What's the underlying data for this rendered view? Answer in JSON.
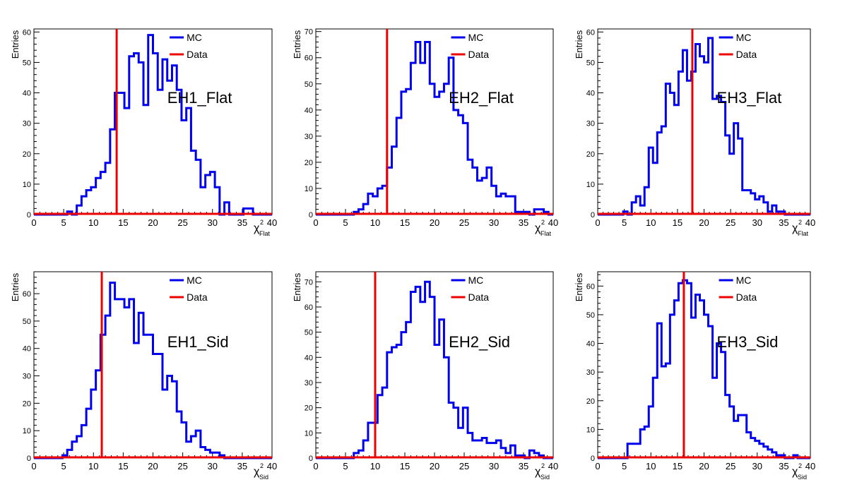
{
  "colors": {
    "mc": "#0000ee",
    "data": "#ee0000",
    "axis": "#000000"
  },
  "chart_data": [
    {
      "type": "line",
      "step": true,
      "title": "EH1_Flat",
      "ylabel": "Entries",
      "xlabel_main": "χ",
      "xlabel_sup": "2",
      "xlabel_sub": "Flat",
      "xlim": [
        0,
        40
      ],
      "ylim": [
        0,
        61
      ],
      "xticks": [
        0,
        5,
        10,
        15,
        20,
        25,
        30,
        35,
        40
      ],
      "yticks": [
        0,
        10,
        20,
        30,
        40,
        50,
        60
      ],
      "bin_width": 0.8,
      "legend": [
        {
          "name": "MC"
        },
        {
          "name": "Data"
        }
      ],
      "data_x": 13.9,
      "mc": [
        0,
        0,
        0,
        0,
        0,
        0,
        0,
        1,
        0,
        3,
        6,
        8,
        9,
        12,
        14,
        17,
        28,
        40,
        40,
        35,
        52,
        53,
        50,
        36,
        59,
        53,
        41,
        51,
        44,
        49,
        41,
        31,
        35,
        21,
        18,
        9,
        13,
        14,
        9,
        0,
        4,
        0,
        0,
        0,
        2,
        2,
        0,
        0,
        0,
        0
      ]
    },
    {
      "type": "line",
      "step": true,
      "title": "EH2_Flat",
      "ylabel": "Entries",
      "xlabel_main": "χ",
      "xlabel_sup": "2",
      "xlabel_sub": "Flat",
      "xlim": [
        0,
        40
      ],
      "ylim": [
        0,
        71
      ],
      "xticks": [
        0,
        5,
        10,
        15,
        20,
        25,
        30,
        35,
        40
      ],
      "yticks": [
        0,
        10,
        20,
        30,
        40,
        50,
        60,
        70
      ],
      "bin_width": 0.8,
      "legend": [
        {
          "name": "MC"
        },
        {
          "name": "Data"
        }
      ],
      "data_x": 12.0,
      "mc": [
        0,
        0,
        0,
        0,
        0,
        0,
        0,
        0,
        1,
        2,
        4,
        8,
        7,
        10,
        11,
        18,
        26,
        37,
        47,
        48,
        58,
        66,
        58,
        66,
        50,
        45,
        47,
        50,
        60,
        40,
        38,
        35,
        21,
        18,
        13,
        14,
        18,
        11,
        7,
        8,
        7,
        7,
        1,
        1,
        1,
        0,
        2,
        2,
        1,
        0
      ]
    },
    {
      "type": "line",
      "step": true,
      "title": "EH3_Flat",
      "ylabel": "Entries",
      "xlabel_main": "χ",
      "xlabel_sup": "2",
      "xlabel_sub": "Flat",
      "xlim": [
        0,
        40
      ],
      "ylim": [
        0,
        61
      ],
      "xticks": [
        0,
        5,
        10,
        15,
        20,
        25,
        30,
        35,
        40
      ],
      "yticks": [
        0,
        10,
        20,
        30,
        40,
        50,
        60
      ],
      "bin_width": 0.8,
      "legend": [
        {
          "name": "MC"
        },
        {
          "name": "Data"
        }
      ],
      "data_x": 17.8,
      "mc": [
        0,
        0,
        0,
        0,
        0,
        0,
        1,
        0,
        4,
        6,
        3,
        9,
        22,
        17,
        27,
        29,
        43,
        40,
        36,
        47,
        54,
        44,
        47,
        56,
        52,
        50,
        58,
        38,
        39,
        37,
        26,
        20,
        30,
        25,
        8,
        8,
        7,
        5,
        6,
        4,
        1,
        3,
        1,
        1,
        0,
        0,
        0,
        0,
        0,
        0
      ]
    },
    {
      "type": "line",
      "step": true,
      "title": "EH1_Sid",
      "ylabel": "Entries",
      "xlabel_main": "χ",
      "xlabel_sup": "2",
      "xlabel_sub": "Sid",
      "xlim": [
        0,
        40
      ],
      "ylim": [
        0,
        68
      ],
      "xticks": [
        0,
        5,
        10,
        15,
        20,
        25,
        30,
        35,
        40
      ],
      "yticks": [
        0,
        10,
        20,
        30,
        40,
        50,
        60
      ],
      "bin_width": 0.8,
      "legend": [
        {
          "name": "MC"
        },
        {
          "name": "Data"
        }
      ],
      "data_x": 11.4,
      "mc": [
        0,
        0,
        0,
        0,
        0,
        0,
        1,
        3,
        6,
        8,
        12,
        18,
        25,
        32,
        45,
        52,
        64,
        58,
        58,
        55,
        58,
        42,
        53,
        45,
        45,
        38,
        38,
        25,
        30,
        28,
        17,
        13,
        6,
        8,
        10,
        4,
        3,
        2,
        2,
        1,
        0,
        0,
        0,
        0,
        0,
        0,
        0,
        0,
        0,
        0
      ]
    },
    {
      "type": "line",
      "step": true,
      "title": "EH2_Sid",
      "ylabel": "Entries",
      "xlabel_main": "χ",
      "xlabel_sup": "2",
      "xlabel_sub": "Sid",
      "xlim": [
        0,
        40
      ],
      "ylim": [
        0,
        74
      ],
      "xticks": [
        0,
        5,
        10,
        15,
        20,
        25,
        30,
        35,
        40
      ],
      "yticks": [
        0,
        10,
        20,
        30,
        40,
        50,
        60,
        70
      ],
      "bin_width": 0.8,
      "legend": [
        {
          "name": "MC"
        },
        {
          "name": "Data"
        }
      ],
      "data_x": 10.0,
      "mc": [
        0,
        0,
        0,
        0,
        0,
        0,
        0,
        0,
        2,
        3,
        7,
        14,
        14,
        25,
        28,
        42,
        44,
        45,
        50,
        54,
        66,
        68,
        62,
        70,
        64,
        45,
        55,
        40,
        22,
        20,
        12,
        20,
        10,
        7,
        7,
        8,
        6,
        6,
        7,
        4,
        2,
        5,
        1,
        1,
        0,
        3,
        2,
        1,
        0,
        0
      ]
    },
    {
      "type": "line",
      "step": true,
      "title": "EH3_Sid",
      "ylabel": "Entries",
      "xlabel_main": "χ",
      "xlabel_sup": "2",
      "xlabel_sub": "Sid",
      "xlim": [
        0,
        40
      ],
      "ylim": [
        0,
        65
      ],
      "xticks": [
        0,
        5,
        10,
        15,
        20,
        25,
        30,
        35,
        40
      ],
      "yticks": [
        0,
        10,
        20,
        30,
        40,
        50,
        60
      ],
      "bin_width": 0.8,
      "legend": [
        {
          "name": "MC"
        },
        {
          "name": "Data"
        }
      ],
      "data_x": 16.2,
      "mc": [
        0,
        0,
        0,
        0,
        0,
        0,
        0,
        5,
        5,
        5,
        10,
        11,
        18,
        28,
        47,
        32,
        33,
        50,
        55,
        61,
        62,
        61,
        49,
        57,
        55,
        50,
        46,
        28,
        40,
        37,
        22,
        18,
        13,
        15,
        15,
        9,
        7,
        6,
        5,
        4,
        3,
        2,
        1,
        1,
        0,
        0,
        1,
        0,
        0,
        0
      ]
    }
  ]
}
